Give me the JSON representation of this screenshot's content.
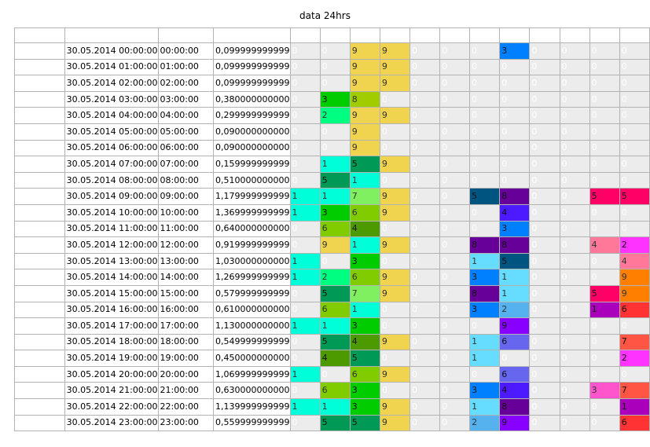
{
  "title": "data 24hrs",
  "colors": {
    "0": "#ececec",
    "1": "#00ffd9",
    "2": "#00ff80",
    "3": "#00cc00",
    "4": "#4d9900",
    "5": "#009955",
    "6": "#80cc00",
    "7": "#80f060",
    "8": "#a0cc00",
    "9": "#f0d450"
  },
  "colorsRight": {
    "0": "#ececec",
    "1": "#66ddff",
    "2": "#55b2ee",
    "3": "#0080ff",
    "4": "#4d1aff",
    "5": "#005580",
    "6": "#6666ee",
    "8": "#660099",
    "9": "#8800ff"
  },
  "colorsFar": {
    "0": "#ececec",
    "1": "#aa00bb",
    "2": "#ff33ff",
    "3": "#ff55cc",
    "4": "#ff7799",
    "5": "#ff0066",
    "6": "#ff3333",
    "7": "#ff5544",
    "9": "#ff8000"
  },
  "rows": [
    {
      "date": "30.05.2014 00:00:00",
      "time": "00:00:00",
      "value": "0,099999999999",
      "cells": [
        "0",
        "0",
        "9",
        "9",
        "0",
        "0",
        "0",
        "3",
        "0",
        "0",
        "0",
        "0"
      ]
    },
    {
      "date": "30.05.2014 01:00:00",
      "time": "01:00:00",
      "value": "0,099999999999",
      "cells": [
        "0",
        "0",
        "9",
        "9",
        "0",
        "0",
        "0",
        "0",
        "0",
        "0",
        "0",
        "0"
      ]
    },
    {
      "date": "30.05.2014 02:00:00",
      "time": "02:00:00",
      "value": "0,099999999999",
      "cells": [
        "0",
        "0",
        "9",
        "9",
        "0",
        "0",
        "0",
        "0",
        "0",
        "0",
        "0",
        "0"
      ]
    },
    {
      "date": "30.05.2014 03:00:00",
      "time": "03:00:00",
      "value": "0,380000000000",
      "cells": [
        "0",
        "3",
        "8",
        "0",
        "0",
        "0",
        "0",
        "0",
        "0",
        "0",
        "0",
        "0"
      ]
    },
    {
      "date": "30.05.2014 04:00:00",
      "time": "04:00:00",
      "value": "0,299999999999",
      "cells": [
        "0",
        "2",
        "9",
        "9",
        "0",
        "0",
        "0",
        "0",
        "0",
        "0",
        "0",
        "0"
      ]
    },
    {
      "date": "30.05.2014 05:00:00",
      "time": "05:00:00",
      "value": "0,090000000000",
      "cells": [
        "0",
        "0",
        "9",
        "0",
        "0",
        "0",
        "0",
        "0",
        "0",
        "0",
        "0",
        "0"
      ]
    },
    {
      "date": "30.05.2014 06:00:00",
      "time": "06:00:00",
      "value": "0,090000000000",
      "cells": [
        "0",
        "0",
        "9",
        "0",
        "0",
        "0",
        "0",
        "0",
        "0",
        "0",
        "0",
        "0"
      ]
    },
    {
      "date": "30.05.2014 07:00:00",
      "time": "07:00:00",
      "value": "0,159999999999",
      "cells": [
        "0",
        "1",
        "5",
        "9",
        "0",
        "0",
        "0",
        "0",
        "0",
        "0",
        "0",
        "0"
      ]
    },
    {
      "date": "30.05.2014 08:00:00",
      "time": "08:00:00",
      "value": "0,510000000000",
      "cells": [
        "0",
        "5",
        "1",
        "0",
        "0",
        "0",
        "0",
        "0",
        "0",
        "0",
        "0",
        "0"
      ]
    },
    {
      "date": "30.05.2014 09:00:00",
      "time": "09:00:00",
      "value": "1,179999999999",
      "cells": [
        "1",
        "1",
        "7",
        "9",
        "0",
        "0",
        "5",
        "8",
        "0",
        "0",
        "5",
        "5"
      ]
    },
    {
      "date": "30.05.2014 10:00:00",
      "time": "10:00:00",
      "value": "1,369999999999",
      "cells": [
        "1",
        "3",
        "6",
        "9",
        "0",
        "0",
        "0",
        "4",
        "0",
        "0",
        "0",
        "0"
      ]
    },
    {
      "date": "30.05.2014 11:00:00",
      "time": "11:00:00",
      "value": "0,640000000000",
      "cells": [
        "0",
        "6",
        "4",
        "0",
        "0",
        "0",
        "0",
        "3",
        "0",
        "0",
        "0",
        "0"
      ]
    },
    {
      "date": "30.05.2014 12:00:00",
      "time": "12:00:00",
      "value": "0,919999999999",
      "cells": [
        "0",
        "9",
        "1",
        "9",
        "0",
        "0",
        "8",
        "8",
        "0",
        "0",
        "4",
        "2"
      ]
    },
    {
      "date": "30.05.2014 13:00:00",
      "time": "13:00:00",
      "value": "1,030000000000",
      "cells": [
        "1",
        "0",
        "3",
        "0",
        "0",
        "0",
        "1",
        "5",
        "0",
        "0",
        "0",
        "4"
      ]
    },
    {
      "date": "30.05.2014 14:00:00",
      "time": "14:00:00",
      "value": "1,269999999999",
      "cells": [
        "1",
        "2",
        "6",
        "9",
        "0",
        "0",
        "3",
        "1",
        "0",
        "0",
        "0",
        "9"
      ]
    },
    {
      "date": "30.05.2014 15:00:00",
      "time": "15:00:00",
      "value": "0,579999999999",
      "cells": [
        "0",
        "5",
        "7",
        "9",
        "0",
        "0",
        "8",
        "1",
        "0",
        "0",
        "5",
        "9"
      ]
    },
    {
      "date": "30.05.2014 16:00:00",
      "time": "16:00:00",
      "value": "0,610000000000",
      "cells": [
        "0",
        "6",
        "1",
        "0",
        "0",
        "0",
        "3",
        "2",
        "0",
        "0",
        "1",
        "6"
      ]
    },
    {
      "date": "30.05.2014 17:00:00",
      "time": "17:00:00",
      "value": "1,130000000000",
      "cells": [
        "1",
        "1",
        "3",
        "0",
        "0",
        "0",
        "0",
        "9",
        "0",
        "0",
        "0",
        "0"
      ]
    },
    {
      "date": "30.05.2014 18:00:00",
      "time": "18:00:00",
      "value": "0,549999999999",
      "cells": [
        "0",
        "5",
        "4",
        "9",
        "0",
        "0",
        "1",
        "6",
        "0",
        "0",
        "0",
        "7"
      ]
    },
    {
      "date": "30.05.2014 19:00:00",
      "time": "19:00:00",
      "value": "0,450000000000",
      "cells": [
        "0",
        "4",
        "5",
        "0",
        "0",
        "0",
        "1",
        "0",
        "0",
        "0",
        "0",
        "2"
      ]
    },
    {
      "date": "30.05.2014 20:00:00",
      "time": "20:00:00",
      "value": "1,069999999999",
      "cells": [
        "1",
        "0",
        "6",
        "9",
        "0",
        "0",
        "0",
        "6",
        "0",
        "0",
        "0",
        "0"
      ]
    },
    {
      "date": "30.05.2014 21:00:00",
      "time": "21:00:00",
      "value": "0,630000000000",
      "cells": [
        "0",
        "6",
        "3",
        "0",
        "0",
        "0",
        "3",
        "4",
        "0",
        "0",
        "3",
        "7"
      ]
    },
    {
      "date": "30.05.2014 22:00:00",
      "time": "22:00:00",
      "value": "1,139999999999",
      "cells": [
        "1",
        "1",
        "3",
        "9",
        "0",
        "0",
        "1",
        "8",
        "0",
        "0",
        "0",
        "1"
      ]
    },
    {
      "date": "30.05.2014 23:00:00",
      "time": "23:00:00",
      "value": "0,559999999999",
      "cells": [
        "0",
        "5",
        "5",
        "9",
        "0",
        "0",
        "2",
        "9",
        "0",
        "0",
        "0",
        "6"
      ]
    }
  ]
}
